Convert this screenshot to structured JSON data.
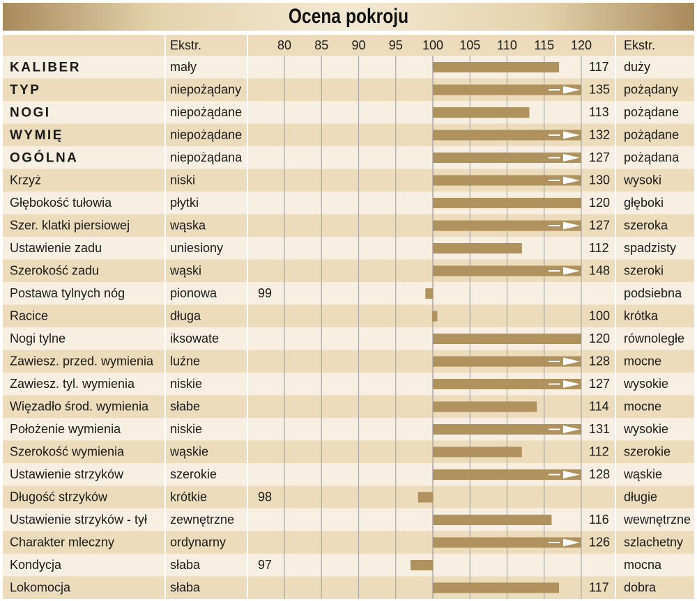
{
  "title": "Ocena pokroju",
  "header": {
    "left_extreme": "Ekstr.",
    "right_extreme": "Ekstr."
  },
  "colors": {
    "bar": "#b0925e",
    "band_dark": "#ecdcbc",
    "band_light": "#f7f0e2",
    "grid": "#a8a8a8",
    "arrow": "#ffffff"
  },
  "chart_data": {
    "type": "bar",
    "orientation": "horizontal",
    "title": "Ocena pokroju",
    "baseline": 100,
    "xlim": [
      76,
      121
    ],
    "x_ticks": [
      80,
      85,
      90,
      95,
      100,
      105,
      110,
      115,
      120
    ],
    "rows": [
      {
        "trait": "KALIBER",
        "bold": true,
        "left": "mały",
        "value": 117,
        "label": "117",
        "label_side": "right",
        "right": "duży"
      },
      {
        "trait": "TYP",
        "bold": true,
        "left": "niepożądany",
        "value": 135,
        "label": "135",
        "label_side": "right",
        "right": "pożądany"
      },
      {
        "trait": "NOGI",
        "bold": true,
        "left": "niepożądane",
        "value": 113,
        "label": "113",
        "label_side": "right",
        "right": "pożądane"
      },
      {
        "trait": "WYMIĘ",
        "bold": true,
        "left": "niepożądane",
        "value": 132,
        "label": "132",
        "label_side": "right",
        "right": "pożądane"
      },
      {
        "trait": "OGÓLNA",
        "bold": true,
        "left": "niepożądana",
        "value": 127,
        "label": "127",
        "label_side": "right",
        "right": "pożądana"
      },
      {
        "trait": "Krzyż",
        "bold": false,
        "left": "niski",
        "value": 130,
        "label": "130",
        "label_side": "right",
        "right": "wysoki"
      },
      {
        "trait": "Głębokość tułowia",
        "bold": false,
        "left": "płytki",
        "value": 120,
        "label": "120",
        "label_side": "right",
        "right": "głęboki"
      },
      {
        "trait": "Szer. klatki piersiowej",
        "bold": false,
        "left": "wąska",
        "value": 127,
        "label": "127",
        "label_side": "right",
        "right": "szeroka"
      },
      {
        "trait": "Ustawienie zadu",
        "bold": false,
        "left": "uniesiony",
        "value": 112,
        "label": "112",
        "label_side": "right",
        "right": "spadzisty"
      },
      {
        "trait": "Szerokość zadu",
        "bold": false,
        "left": "wąski",
        "value": 148,
        "label": "148",
        "label_side": "right",
        "right": "szeroki"
      },
      {
        "trait": "Postawa tylnych nóg",
        "bold": false,
        "left": "pionowa",
        "value": 99,
        "label": "99",
        "label_side": "left",
        "right": "podsiebna"
      },
      {
        "trait": "Racice",
        "bold": false,
        "left": "długa",
        "value": 100,
        "label": "100",
        "label_side": "right",
        "right": "krótka"
      },
      {
        "trait": "Nogi tylne",
        "bold": false,
        "left": "iksowate",
        "value": 120,
        "label": "120",
        "label_side": "right",
        "right": "równoległe"
      },
      {
        "trait": "Zawiesz. przed. wymienia",
        "bold": false,
        "left": "luźne",
        "value": 128,
        "label": "128",
        "label_side": "right",
        "right": "mocne"
      },
      {
        "trait": "Zawiesz. tyl. wymienia",
        "bold": false,
        "left": "niskie",
        "value": 127,
        "label": "127",
        "label_side": "right",
        "right": "wysokie"
      },
      {
        "trait": "Więzadło środ. wymienia",
        "bold": false,
        "left": "słabe",
        "value": 114,
        "label": "114",
        "label_side": "right",
        "right": "mocne"
      },
      {
        "trait": "Położenie wymienia",
        "bold": false,
        "left": "niskie",
        "value": 131,
        "label": "131",
        "label_side": "right",
        "right": "wysokie"
      },
      {
        "trait": "Szerokość wymienia",
        "bold": false,
        "left": "wąskie",
        "value": 112,
        "label": "112",
        "label_side": "right",
        "right": "szerokie"
      },
      {
        "trait": "Ustawienie strzyków",
        "bold": false,
        "left": "szerokie",
        "value": 128,
        "label": "128",
        "label_side": "right",
        "right": "wąskie"
      },
      {
        "trait": "Długość strzyków",
        "bold": false,
        "left": "krótkie",
        "value": 98,
        "label": "98",
        "label_side": "left",
        "right": "długie"
      },
      {
        "trait": "Ustawienie strzyków - tył",
        "bold": false,
        "left": "zewnętrzne",
        "value": 116,
        "label": "116",
        "label_side": "right",
        "right": "wewnętrzne"
      },
      {
        "trait": "Charakter mleczny",
        "bold": false,
        "left": "ordynarny",
        "value": 126,
        "label": "126",
        "label_side": "right",
        "right": "szlachetny"
      },
      {
        "trait": "Kondycja",
        "bold": false,
        "left": "słaba",
        "value": 97,
        "label": "97",
        "label_side": "left",
        "right": "mocna"
      },
      {
        "trait": "Lokomocja",
        "bold": false,
        "left": "słaba",
        "value": 117,
        "label": "117",
        "label_side": "right",
        "right": "dobra"
      }
    ]
  }
}
